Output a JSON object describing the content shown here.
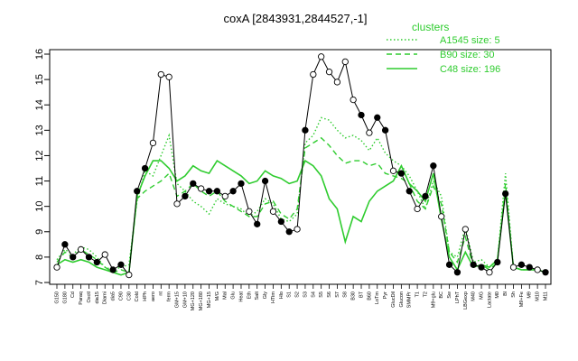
{
  "chart_data": {
    "type": "line",
    "title": "coxA [2843931,2844527,-1]",
    "xlabel": "",
    "ylabel": "",
    "ylim": [
      7,
      16
    ],
    "yticks": [
      7,
      8,
      9,
      10,
      11,
      12,
      13,
      14,
      15,
      16
    ],
    "grid": false,
    "legend_position": "top-right",
    "legend_title": "clusters",
    "x_tick_labels": [
      "G150",
      "G180",
      "Cd",
      "Paraq",
      "Oxctl",
      "dia15",
      "Diami",
      "dia5",
      "C90",
      "C30",
      "Cold",
      "HPh",
      "aero",
      "nt",
      "ferm",
      "GM+15",
      "GM+10",
      "MG+120",
      "MG+180",
      "MG+15",
      "M/G",
      "Mal",
      "Glu",
      "Heat",
      "Eth",
      "Salt",
      "Gly",
      "HTim",
      "Hlo",
      "S1",
      "S2",
      "S3",
      "S4",
      "S5",
      "S6",
      "S7",
      "S8",
      "B30",
      "BT",
      "B60",
      "LoTm",
      "Pyr",
      "GlucDil",
      "Glucon",
      "SMMPr",
      "T1",
      "T2",
      "M9+glu",
      "BC",
      "Sw",
      "LPhT",
      "LBGexp",
      "M40",
      "MG",
      "Lactate",
      "M0",
      "Bl",
      "Sh",
      "M9+Fe",
      "M9",
      "M10",
      "M11"
    ],
    "series": [
      {
        "name": "A1545 size: 5",
        "style": "dotted",
        "color": "#2fcc2f",
        "values": [
          7.9,
          8.3,
          8.1,
          8.4,
          8.3,
          8.0,
          7.6,
          7.5,
          7.6,
          7.7,
          10.2,
          11.4,
          11.2,
          12.0,
          12.8,
          10.9,
          10.6,
          10.2,
          10.0,
          9.7,
          10.3,
          10.1,
          10.0,
          9.9,
          9.6,
          9.8,
          10.3,
          10.1,
          9.5,
          9.4,
          9.7,
          12.5,
          12.8,
          13.5,
          13.4,
          13.0,
          12.7,
          12.8,
          12.6,
          12.2,
          12.7,
          12.1,
          11.8,
          11.6,
          11.2,
          10.6,
          9.9,
          11.0,
          10.4,
          8.2,
          8.0,
          9.2,
          7.8,
          7.9,
          7.6,
          7.9,
          11.3,
          7.6,
          7.5,
          7.5,
          7.5,
          7.4
        ]
      },
      {
        "name": "B90 size: 30",
        "style": "dashed",
        "color": "#2fcc2f",
        "values": [
          7.8,
          8.2,
          8.0,
          8.3,
          8.1,
          7.9,
          7.6,
          7.4,
          7.5,
          7.4,
          10.3,
          10.6,
          10.8,
          11.0,
          11.3,
          10.4,
          10.6,
          10.9,
          10.6,
          10.4,
          10.6,
          10.2,
          10.0,
          9.8,
          9.6,
          9.6,
          10.1,
          10.2,
          9.7,
          9.5,
          9.9,
          12.3,
          12.5,
          12.7,
          12.4,
          12.0,
          11.7,
          11.8,
          11.8,
          11.6,
          11.7,
          11.3,
          11.2,
          11.1,
          10.9,
          10.2,
          9.9,
          10.8,
          10.1,
          8.2,
          7.8,
          8.8,
          7.6,
          7.7,
          7.5,
          7.8,
          10.9,
          7.6,
          7.5,
          7.5,
          7.5,
          7.4
        ]
      },
      {
        "name": "C48 size: 196",
        "style": "solid",
        "color": "#2fcc2f",
        "values": [
          7.7,
          7.9,
          7.8,
          7.9,
          7.8,
          7.6,
          7.5,
          7.4,
          7.3,
          7.4,
          10.4,
          11.2,
          11.8,
          11.8,
          11.5,
          11.0,
          11.2,
          11.6,
          11.4,
          11.3,
          11.8,
          11.6,
          11.4,
          11.2,
          10.9,
          11.0,
          11.4,
          11.2,
          11.1,
          10.9,
          11.0,
          11.8,
          11.6,
          11.2,
          10.3,
          9.9,
          8.6,
          9.6,
          9.4,
          10.2,
          10.6,
          10.8,
          11.0,
          11.6,
          10.9,
          10.6,
          10.2,
          11.3,
          9.5,
          8.0,
          7.5,
          8.2,
          7.6,
          7.7,
          7.6,
          7.9,
          10.6,
          7.6,
          7.5,
          7.5,
          7.5,
          7.4
        ]
      },
      {
        "name": "coxA",
        "style": "points",
        "color": "#000000",
        "values": [
          7.6,
          8.5,
          8.0,
          8.3,
          8.0,
          7.8,
          8.1,
          7.5,
          7.7,
          7.3,
          10.6,
          11.5,
          12.5,
          15.2,
          15.1,
          10.1,
          10.4,
          10.9,
          10.7,
          10.6,
          10.6,
          10.4,
          10.6,
          10.9,
          9.8,
          9.3,
          11.0,
          9.8,
          9.4,
          9.0,
          9.1,
          13.0,
          15.2,
          15.9,
          15.3,
          14.9,
          15.7,
          14.2,
          13.6,
          12.9,
          13.5,
          13.0,
          11.4,
          11.3,
          10.6,
          9.9,
          10.4,
          11.6,
          9.6,
          7.7,
          7.4,
          9.1,
          7.7,
          7.6,
          7.4,
          7.8,
          10.5,
          7.6,
          7.7,
          7.6,
          7.5,
          7.4
        ]
      }
    ]
  }
}
